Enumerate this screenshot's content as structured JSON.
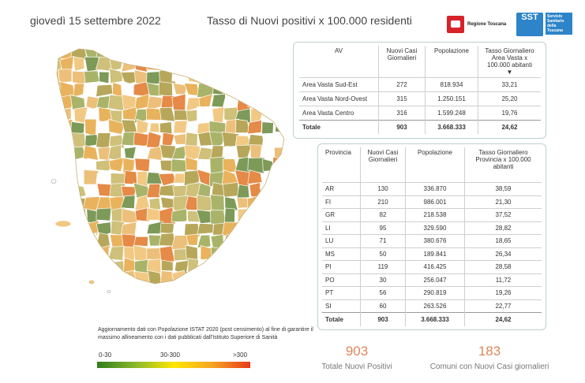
{
  "header": {
    "date": "giovedì 15 settembre 2022",
    "title": "Tasso di Nuovi positivi x 100.000 residenti",
    "logo_rt": "Regione Toscana",
    "logo_sst_mark": "SST",
    "logo_sst_text": "Servizio Sanitario della Toscana"
  },
  "av_table": {
    "headers": [
      "AV",
      "Nuovi Casi Giornalieri",
      "Popolazione",
      "Tasso Giornaliero Area Vasta x 100.000 abitanti"
    ],
    "rows": [
      [
        "Area Vasta Sud-Est",
        "272",
        "818.934",
        "33,21"
      ],
      [
        "Area Vasta Nord-Ovest",
        "315",
        "1.250.151",
        "25,20"
      ],
      [
        "Area Vasta Centro",
        "316",
        "1.599.248",
        "19,76"
      ]
    ],
    "total": [
      "Totale",
      "903",
      "3.668.333",
      "24,62"
    ]
  },
  "prov_table": {
    "headers": [
      "Provincia",
      "Nuovi Casi Giornalieri",
      "Popolazione",
      "Tasso Giornaliero Provincia x 100.000 abitanti"
    ],
    "rows": [
      [
        "AR",
        "130",
        "336.870",
        "38,59"
      ],
      [
        "FI",
        "210",
        "986.001",
        "21,30"
      ],
      [
        "GR",
        "82",
        "218.538",
        "37,52"
      ],
      [
        "LI",
        "95",
        "329.590",
        "28,82"
      ],
      [
        "LU",
        "71",
        "380.676",
        "18,65"
      ],
      [
        "MS",
        "50",
        "189.841",
        "26,34"
      ],
      [
        "PI",
        "119",
        "416.425",
        "28,58"
      ],
      [
        "PO",
        "30",
        "256.047",
        "11,72"
      ],
      [
        "PT",
        "56",
        "290.819",
        "19,26"
      ],
      [
        "SI",
        "60",
        "263.526",
        "22,77"
      ]
    ],
    "total": [
      "Totale",
      "903",
      "3.668.333",
      "24,62"
    ]
  },
  "note": "Aggiornamento dati con Popolazione ISTAT 2020 (post censimento) al fine di garantire il massimo allineamento con i dati pubblicati dall'Istituto Superiore di Sanità",
  "legend": {
    "low": "0-30",
    "mid": "30-300",
    "high": ">300",
    "colors": [
      "#2f7d1a",
      "#8ab82c",
      "#ffe600",
      "#f6a623",
      "#e8381a"
    ]
  },
  "kpis": [
    {
      "value": "903",
      "label": "Totale Nuovi Positivi"
    },
    {
      "value": "183",
      "label": "Comuni con Nuovi Casi giornalieri"
    }
  ],
  "map_colors": [
    "#f2c983",
    "#e9b35d",
    "#a9b46a",
    "#7d9a58",
    "#cfc07a",
    "#e58a47",
    "#ffffff",
    "#ecc07a",
    "#b7a75a"
  ]
}
